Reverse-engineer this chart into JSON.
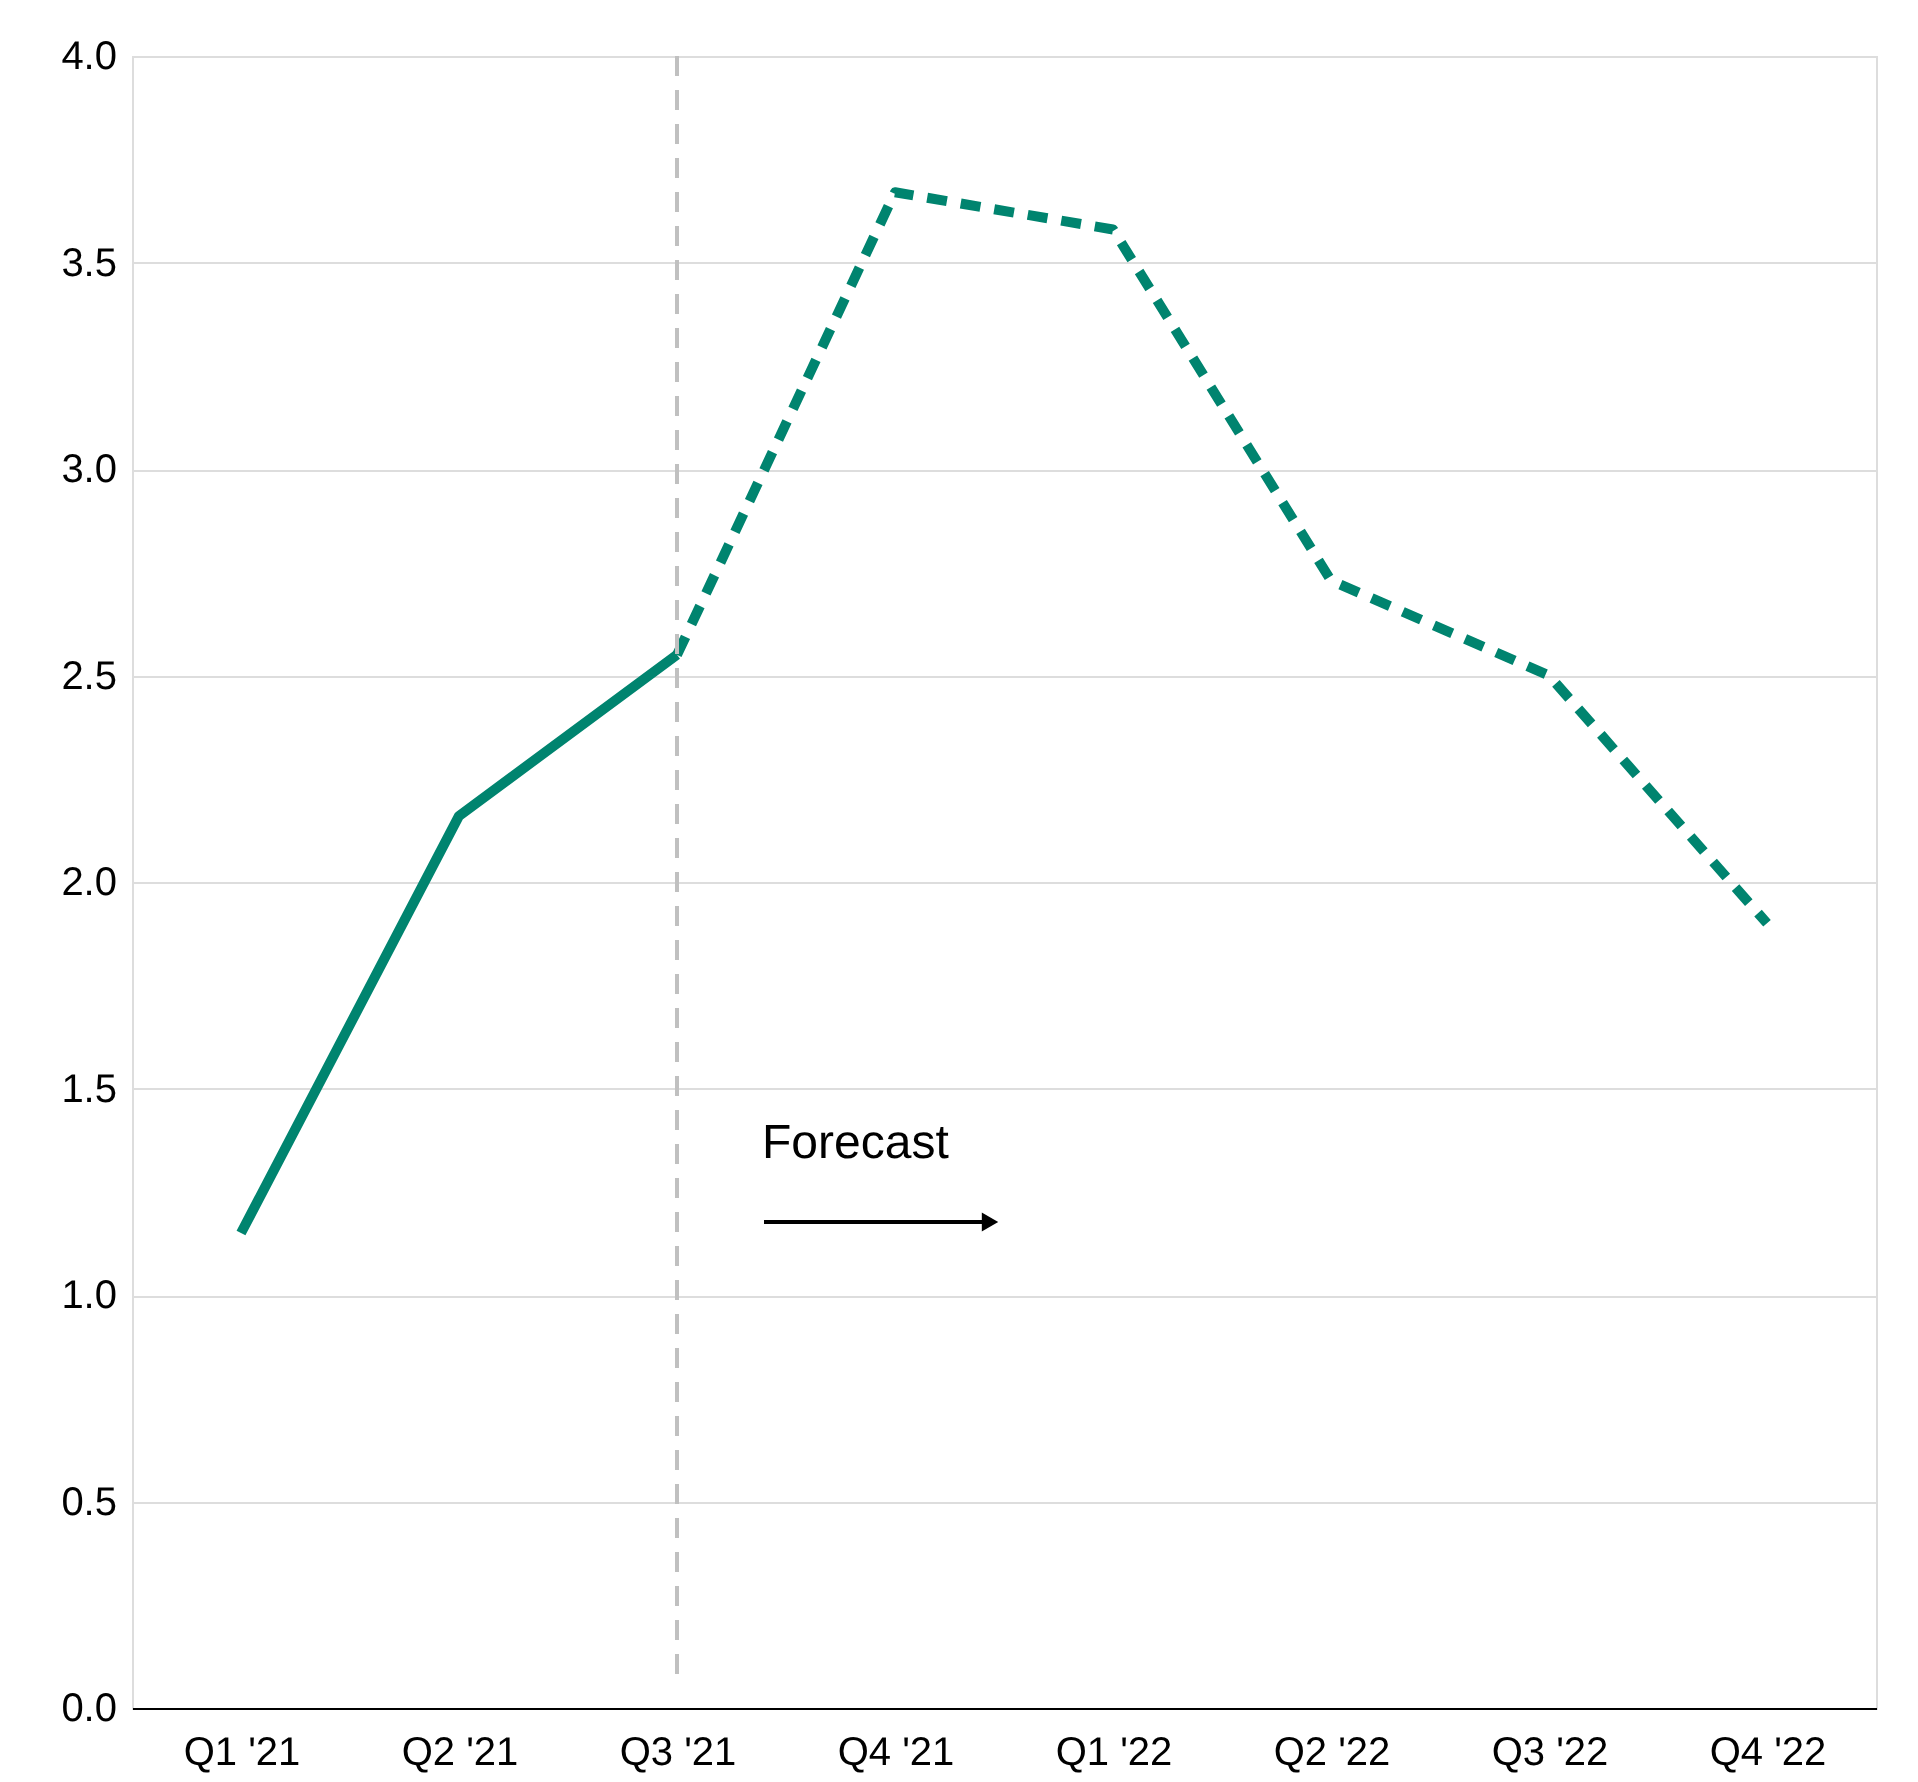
{
  "chart_data": {
    "type": "line",
    "categories": [
      "Q1 '21",
      "Q2 '21",
      "Q3 '21",
      "Q4 '21",
      "Q1 '22",
      "Q2 '22",
      "Q3 '22",
      "Q4 '22"
    ],
    "series": [
      {
        "color": "#00846f",
        "line_style": "solid",
        "values": [
          1.15,
          2.16,
          2.55,
          null,
          null,
          null,
          null,
          null
        ]
      },
      {
        "color": "#00846f",
        "line_style": "dashed",
        "values": [
          null,
          null,
          2.55,
          3.67,
          3.58,
          2.73,
          2.5,
          1.9
        ]
      }
    ],
    "ylim": [
      0,
      4
    ],
    "yticks": [
      {
        "value": 0,
        "label": "0.0"
      },
      0.5,
      {
        "value": 1,
        "label": "1.0"
      },
      1.5,
      {
        "value": 2,
        "label": "2.0"
      },
      2.5,
      {
        "value": 3,
        "label": "3.0"
      },
      3.5,
      {
        "value": 4,
        "label": "4.0"
      }
    ],
    "grid": "y",
    "marker": "none",
    "ref_lines": [
      {
        "axis": "x",
        "value": "Q3 '21",
        "color": "#c0c0c0",
        "line_style": "dashed"
      }
    ],
    "annotations": [
      "Forecast"
    ]
  }
}
